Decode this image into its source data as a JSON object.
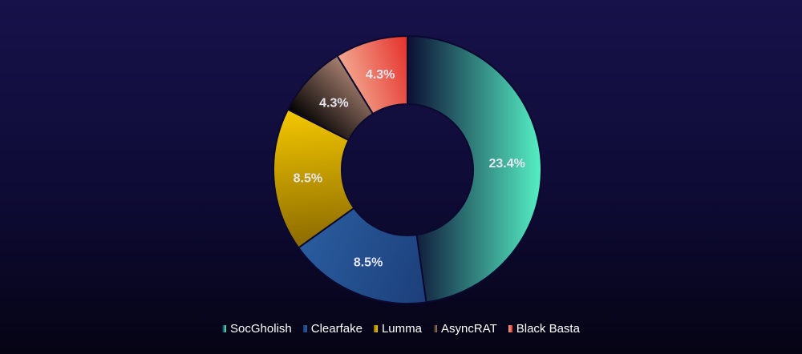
{
  "chart_data": {
    "type": "pie",
    "donut": true,
    "slices": [
      {
        "name": "SocGholish",
        "value": 23.4,
        "label": "23.4%",
        "color_start": "#0c0f33",
        "color_end": "#55f0c4"
      },
      {
        "name": "Clearfake",
        "value": 8.5,
        "label": "8.5%",
        "color_start": "#1c3f7a",
        "color_end": "#2a5c9e"
      },
      {
        "name": "Lumma",
        "value": 8.5,
        "label": "8.5%",
        "color_start": "#8a6a00",
        "color_end": "#f5c800"
      },
      {
        "name": "AsyncRAT",
        "value": 4.3,
        "label": "4.3%",
        "color_start": "#000000",
        "color_end": "#a78070"
      },
      {
        "name": "Black Basta",
        "value": 4.3,
        "label": "4.3%",
        "color_start": "#f2a890",
        "color_end": "#e5302a"
      }
    ],
    "legend_position": "bottom"
  }
}
